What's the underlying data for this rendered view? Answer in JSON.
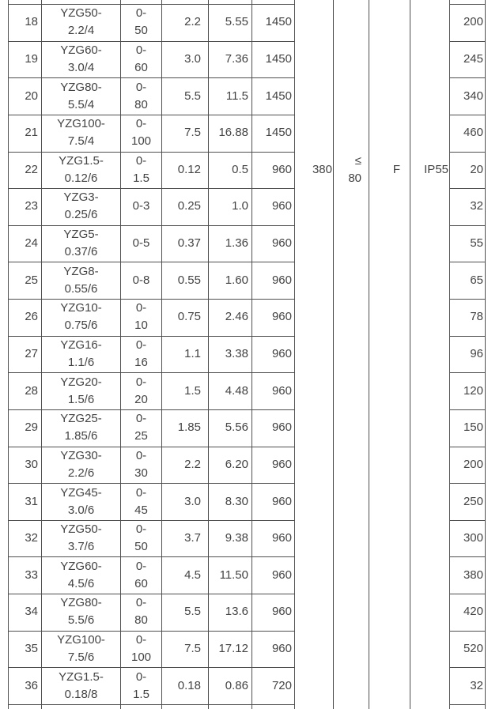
{
  "table": {
    "rows": [
      [
        "18",
        "YZG50-2.2/4",
        "0-50",
        "2.2",
        "5.55",
        "1450",
        "200"
      ],
      [
        "19",
        "YZG60-3.0/4",
        "0-60",
        "3.0",
        "7.36",
        "1450",
        "245"
      ],
      [
        "20",
        "YZG80-5.5/4",
        "0-80",
        "5.5",
        "11.5",
        "1450",
        "340"
      ],
      [
        "21",
        "YZG100-7.5/4",
        "0-100",
        "7.5",
        "16.88",
        "1450",
        "460"
      ],
      [
        "22",
        "YZG1.5-0.12/6",
        "0-1.5",
        "0.12",
        "0.5",
        "960",
        "20"
      ],
      [
        "23",
        "YZG3-0.25/6",
        "0-3",
        "0.25",
        "1.0",
        "960",
        "32"
      ],
      [
        "24",
        "YZG5-0.37/6",
        "0-5",
        "0.37",
        "1.36",
        "960",
        "55"
      ],
      [
        "25",
        "YZG8-0.55/6",
        "0-8",
        "0.55",
        "1.60",
        "960",
        "65"
      ],
      [
        "26",
        "YZG10-0.75/6",
        "0-10",
        "0.75",
        "2.46",
        "960",
        "78"
      ],
      [
        "27",
        "YZG16-1.1/6",
        "0-16",
        "1.1",
        "3.38",
        "960",
        "96"
      ],
      [
        "28",
        "YZG20-1.5/6",
        "0-20",
        "1.5",
        "4.48",
        "960",
        "120"
      ],
      [
        "29",
        "YZG25-1.85/6",
        "0-25",
        "1.85",
        "5.56",
        "960",
        "150"
      ],
      [
        "30",
        "YZG30-2.2/6",
        "0-30",
        "2.2",
        "6.20",
        "960",
        "200"
      ],
      [
        "31",
        "YZG45-3.0/6",
        "0-45",
        "3.0",
        "8.30",
        "960",
        "250"
      ],
      [
        "32",
        "YZG50-3.7/6",
        "0-50",
        "3.7",
        "9.38",
        "960",
        "300"
      ],
      [
        "33",
        "YZG60-4.5/6",
        "0-60",
        "4.5",
        "11.50",
        "960",
        "380"
      ],
      [
        "34",
        "YZG80-5.5/6",
        "0-80",
        "5.5",
        "13.6",
        "960",
        "420"
      ],
      [
        "35",
        "YZG100-7.5/6",
        "0-100",
        "7.5",
        "17.12",
        "960",
        "520"
      ],
      [
        "36",
        "YZG1.5-0.18/8",
        "0-1.5",
        "0.18",
        "0.86",
        "720",
        "32"
      ]
    ],
    "merged_values": [
      "380",
      "≤80",
      "F",
      "IP55"
    ]
  },
  "colors": {
    "border": "#4f4f4f",
    "text": "#434343",
    "background": "#ffffff"
  }
}
